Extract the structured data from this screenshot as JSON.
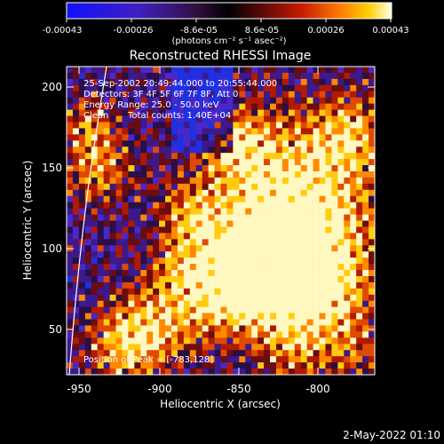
{
  "colorbar": {
    "tick_labels": [
      "-0.00043",
      "-0.00026",
      "-8.6e-05",
      "8.6e-05",
      "0.00026",
      "0.00043"
    ],
    "units_label": "(photons cm⁻² s⁻¹ asec⁻²)",
    "range": [
      -0.00043,
      0.00043
    ]
  },
  "plot": {
    "title": "Reconstructed RHESSI Image",
    "xlabel": "Heliocentric X (arcsec)",
    "ylabel": "Heliocentric Y (arcsec)",
    "x_ticks": [
      "-950",
      "-900",
      "-850",
      "-800"
    ],
    "y_ticks": [
      "50",
      "100",
      "150",
      "200"
    ],
    "xlim": [
      -958,
      -772
    ],
    "ylim": [
      20,
      212
    ]
  },
  "annotations": {
    "time": "25-Sep-2002 20:49:44.000 to 20:55:44.000",
    "detectors": "Detectors: 3F 4F 5F 6F 7F 8F, Att 0",
    "energy": "Energy Range: 25.0 - 50.0 keV",
    "method": "Clean",
    "counts": "Total counts: 1.40E+04",
    "peak": "Position of Peak = [-783,128]"
  },
  "footer": {
    "date": "2-May-2022 01:10"
  },
  "colors": {
    "background": "#000000",
    "axis": "#ffffff"
  }
}
